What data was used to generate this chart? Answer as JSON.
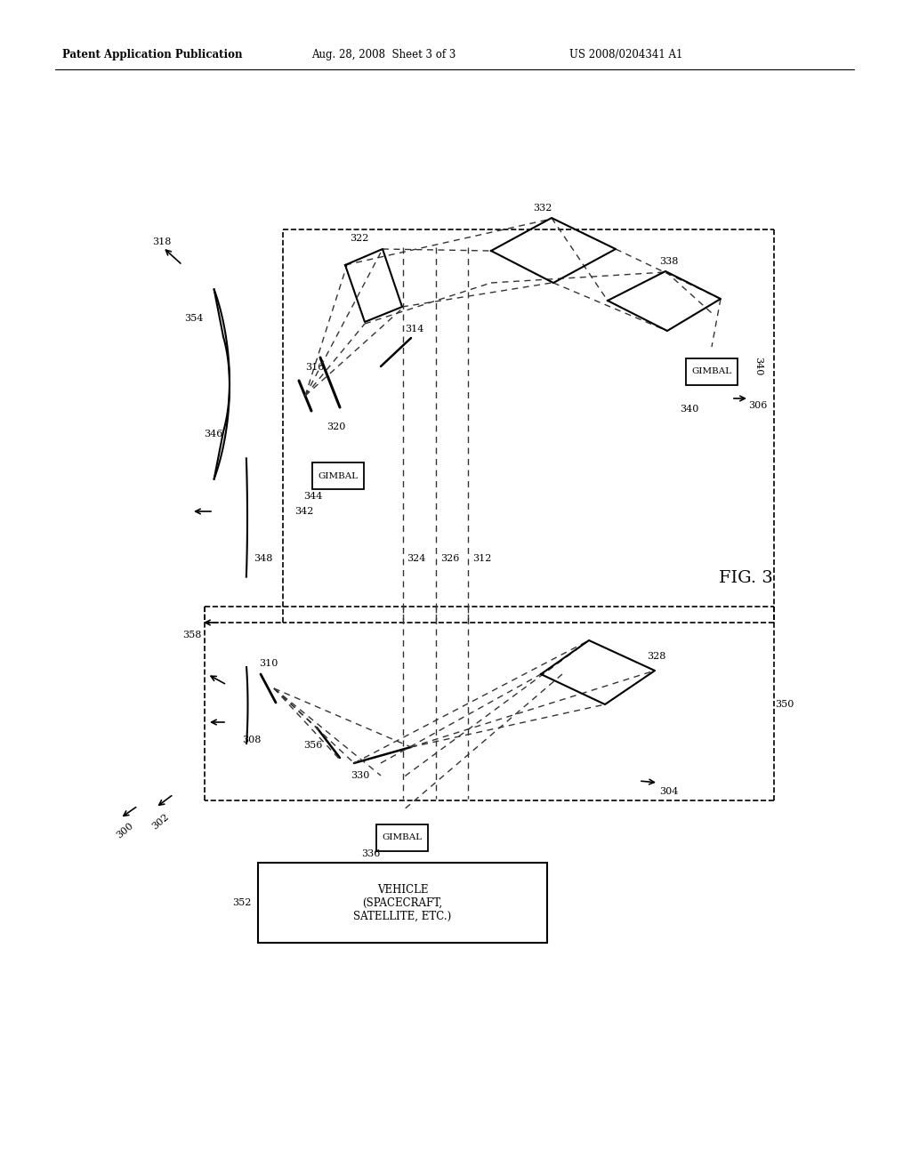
{
  "header_left": "Patent Application Publication",
  "header_mid": "Aug. 28, 2008  Sheet 3 of 3",
  "header_right": "US 2008/0204341 A1",
  "fig_label": "FIG. 3",
  "bg": "#ffffff"
}
